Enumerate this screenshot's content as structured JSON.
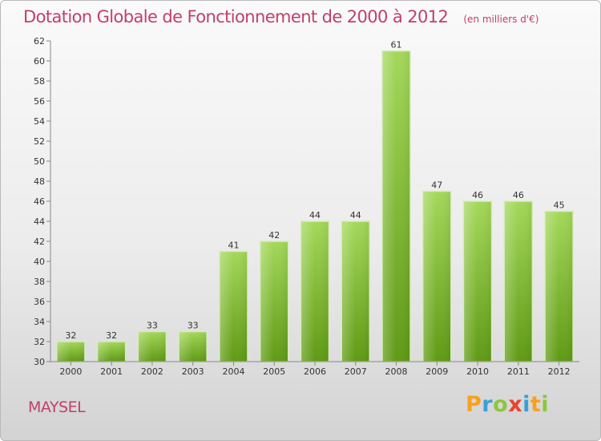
{
  "chart_data": {
    "type": "bar",
    "title": "Dotation Globale de Fonctionnement de 2000 à 2012",
    "unit_note": "(en milliers d'€)",
    "categories": [
      "2000",
      "2001",
      "2002",
      "2003",
      "2004",
      "2005",
      "2006",
      "2007",
      "2008",
      "2009",
      "2010",
      "2011",
      "2012"
    ],
    "values": [
      32,
      32,
      33,
      33,
      41,
      42,
      44,
      44,
      61,
      47,
      46,
      46,
      45
    ],
    "xlabel": "",
    "ylabel": "",
    "ylim": [
      30,
      62
    ],
    "yticks": [
      30,
      32,
      34,
      36,
      38,
      40,
      42,
      44,
      46,
      48,
      50,
      52,
      54,
      56,
      58,
      60,
      62
    ],
    "grid": false,
    "legend": "none",
    "bar_color": "#8cc63f"
  },
  "footer": {
    "commune": "MAYSEL",
    "logo_letters": [
      "P",
      "r",
      "o",
      "x",
      "i",
      "t",
      "i"
    ],
    "logo_colors": [
      "#f7a21b",
      "#3aa0d8",
      "#8cc63f",
      "#e8442f",
      "#3aa0d8",
      "#f7a21b",
      "#8cc63f"
    ]
  }
}
